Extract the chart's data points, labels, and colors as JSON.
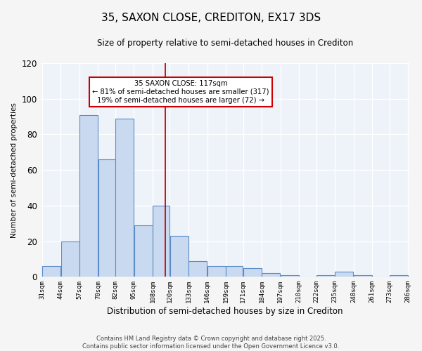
{
  "title": "35, SAXON CLOSE, CREDITON, EX17 3DS",
  "subtitle": "Size of property relative to semi-detached houses in Crediton",
  "xlabel": "Distribution of semi-detached houses by size in Crediton",
  "ylabel": "Number of semi-detached properties",
  "bins": [
    31,
    44,
    57,
    70,
    82,
    95,
    108,
    120,
    133,
    146,
    159,
    171,
    184,
    197,
    210,
    222,
    235,
    248,
    261,
    273,
    286
  ],
  "counts": [
    6,
    20,
    91,
    66,
    89,
    29,
    40,
    23,
    9,
    6,
    6,
    5,
    2,
    1,
    0,
    1,
    3,
    1,
    0,
    1
  ],
  "bar_color": "#c8d9f0",
  "bar_edge_color": "#5b8cc8",
  "vline_x": 117,
  "vline_color": "#cc0000",
  "annotation_text": "35 SAXON CLOSE: 117sqm\n← 81% of semi-detached houses are smaller (317)\n19% of semi-detached houses are larger (72) →",
  "annotation_box_color": "#ffffff",
  "annotation_box_edge": "#cc0000",
  "ylim": [
    0,
    120
  ],
  "yticks": [
    0,
    20,
    40,
    60,
    80,
    100,
    120
  ],
  "bg_color": "#eef2f9",
  "grid_color": "#ffffff",
  "tick_labels": [
    "31sqm",
    "44sqm",
    "57sqm",
    "70sqm",
    "82sqm",
    "95sqm",
    "108sqm",
    "120sqm",
    "133sqm",
    "146sqm",
    "159sqm",
    "171sqm",
    "184sqm",
    "197sqm",
    "210sqm",
    "222sqm",
    "235sqm",
    "248sqm",
    "261sqm",
    "273sqm",
    "286sqm"
  ],
  "footnote1": "Contains HM Land Registry data © Crown copyright and database right 2025.",
  "footnote2": "Contains public sector information licensed under the Open Government Licence v3.0."
}
